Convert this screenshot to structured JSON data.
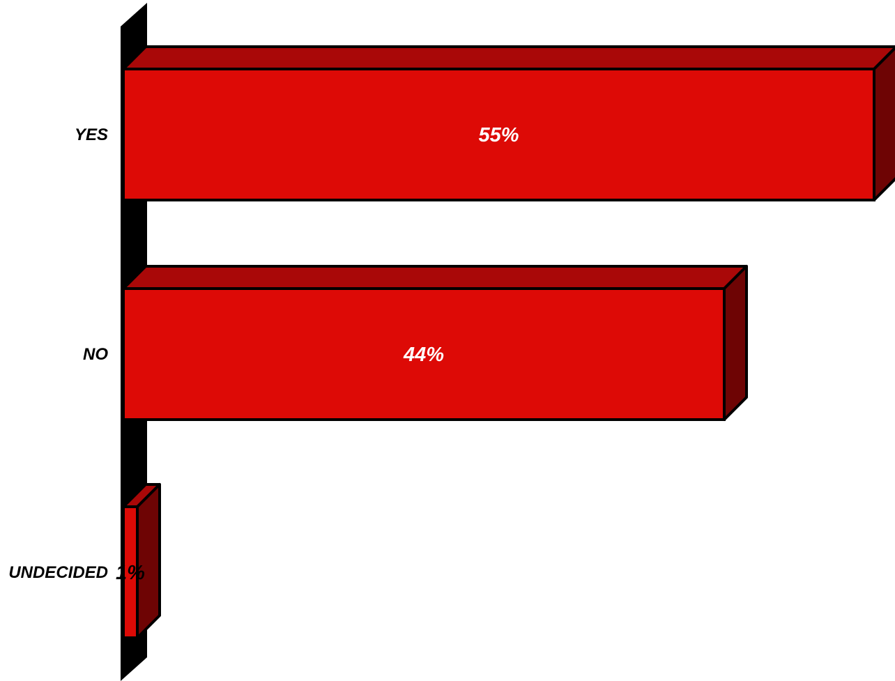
{
  "chart_data": {
    "type": "bar",
    "orientation": "horizontal",
    "style": "3d",
    "categories": [
      "YES",
      "NO",
      "UNDECIDED"
    ],
    "values": [
      55,
      44,
      1
    ],
    "value_labels": [
      "55%",
      "44%",
      "1%"
    ],
    "unit": "%",
    "xlim": [
      0,
      55
    ],
    "title": "",
    "xlabel": "",
    "ylabel": "",
    "grid": false,
    "legend": "none",
    "colors": {
      "bar_front": "#dd0a06",
      "bar_top": "#a90808",
      "bar_side": "#6e0404",
      "wall": "#000000",
      "outline": "#000000"
    }
  }
}
